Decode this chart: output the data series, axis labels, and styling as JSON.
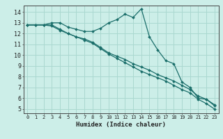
{
  "xlabel": "Humidex (Indice chaleur)",
  "bg_color": "#cceee8",
  "line_color": "#1a6e6a",
  "grid_color": "#aad8d0",
  "xlim": [
    -0.5,
    23.5
  ],
  "ylim": [
    4.6,
    14.6
  ],
  "xticks": [
    0,
    1,
    2,
    3,
    4,
    5,
    6,
    7,
    8,
    9,
    10,
    11,
    12,
    13,
    14,
    15,
    16,
    17,
    18,
    19,
    20,
    21,
    22,
    23
  ],
  "yticks": [
    5,
    6,
    7,
    8,
    9,
    10,
    11,
    12,
    13,
    14
  ],
  "line1_x": [
    0,
    1,
    2,
    3,
    4,
    5,
    6,
    7,
    8,
    9,
    10,
    11,
    12,
    13,
    14,
    15,
    16,
    17,
    18,
    19,
    20,
    21,
    22,
    23
  ],
  "line1_y": [
    12.8,
    12.8,
    12.8,
    13.0,
    13.0,
    12.6,
    12.4,
    12.2,
    12.2,
    12.5,
    13.0,
    13.3,
    13.8,
    13.5,
    14.3,
    11.7,
    10.5,
    9.5,
    9.2,
    7.5,
    7.0,
    6.0,
    5.9,
    5.3
  ],
  "line2_x": [
    0,
    1,
    2,
    3,
    4,
    5,
    6,
    7,
    8,
    9,
    10,
    11,
    12,
    13,
    14,
    15,
    16,
    17,
    18,
    19,
    20,
    21,
    22,
    23
  ],
  "line2_y": [
    12.8,
    12.8,
    12.8,
    12.8,
    12.4,
    12.0,
    11.7,
    11.5,
    11.2,
    10.7,
    10.2,
    9.9,
    9.6,
    9.2,
    8.9,
    8.6,
    8.2,
    7.9,
    7.6,
    7.2,
    6.8,
    6.2,
    5.9,
    5.4
  ],
  "line3_x": [
    0,
    1,
    2,
    3,
    4,
    5,
    6,
    7,
    8,
    9,
    10,
    11,
    12,
    13,
    14,
    15,
    16,
    17,
    18,
    19,
    20,
    21,
    22,
    23
  ],
  "line3_y": [
    12.8,
    12.8,
    12.8,
    12.7,
    12.3,
    12.0,
    11.7,
    11.4,
    11.1,
    10.6,
    10.1,
    9.7,
    9.3,
    8.9,
    8.5,
    8.2,
    7.9,
    7.6,
    7.2,
    6.8,
    6.5,
    5.9,
    5.5,
    5.0
  ]
}
